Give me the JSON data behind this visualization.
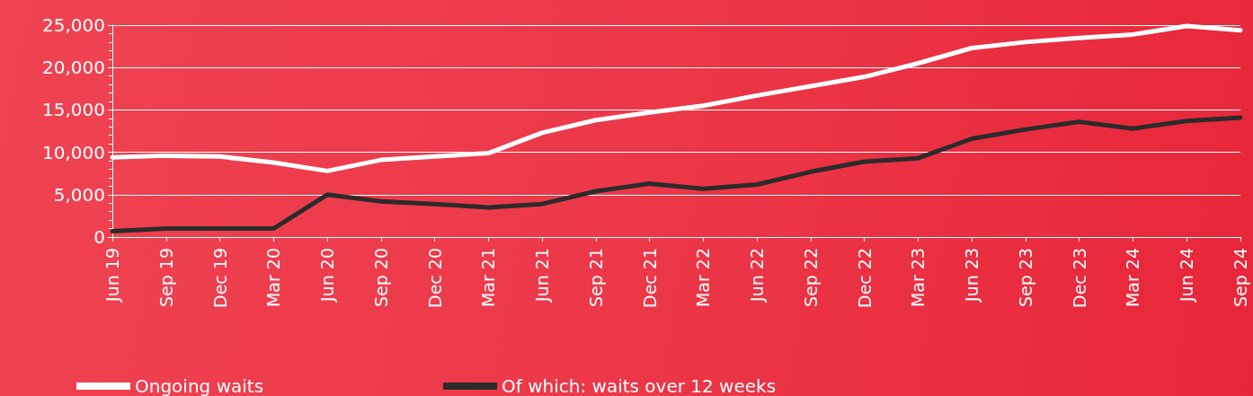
{
  "chart_data": {
    "type": "line",
    "categories": [
      "Jun 19",
      "Sep 19",
      "Dec 19",
      "Mar 20",
      "Jun 20",
      "Sep 20",
      "Dec 20",
      "Mar 21",
      "Jun 21",
      "Sep 21",
      "Dec 21",
      "Mar 22",
      "Jun 22",
      "Sep 22",
      "Dec 22",
      "Mar 23",
      "Jun 23",
      "Sep 23",
      "Dec 23",
      "Mar 24",
      "Jun 24",
      "Sep 24"
    ],
    "series": [
      {
        "name": "Ongoing waits",
        "color": "#ffffff",
        "values": [
          9400,
          9600,
          9500,
          8800,
          7800,
          9100,
          9500,
          9900,
          12300,
          13800,
          14700,
          15500,
          16700,
          17800,
          18900,
          20500,
          22300,
          23000,
          23500,
          23900,
          24900,
          24400
        ]
      },
      {
        "name": "Of which: waits over 12 weeks",
        "color": "#2b2b2b",
        "values": [
          700,
          1000,
          1000,
          1000,
          5000,
          4200,
          3900,
          3500,
          3900,
          5400,
          6300,
          5700,
          6200,
          7700,
          8900,
          9300,
          11600,
          12700,
          13600,
          12800,
          13700,
          14100
        ]
      }
    ],
    "ylim": [
      0,
      25000
    ],
    "yticks": [
      {
        "value": 0,
        "label": "0"
      },
      {
        "value": 5000,
        "label": "5,000"
      },
      {
        "value": 10000,
        "label": "10,000"
      },
      {
        "value": 15000,
        "label": "15,000"
      },
      {
        "value": 20000,
        "label": "20,000"
      },
      {
        "value": 25000,
        "label": "25,000"
      }
    ],
    "grid": "y",
    "legend": "bottom left",
    "marker": "none",
    "line_style": "solid"
  }
}
